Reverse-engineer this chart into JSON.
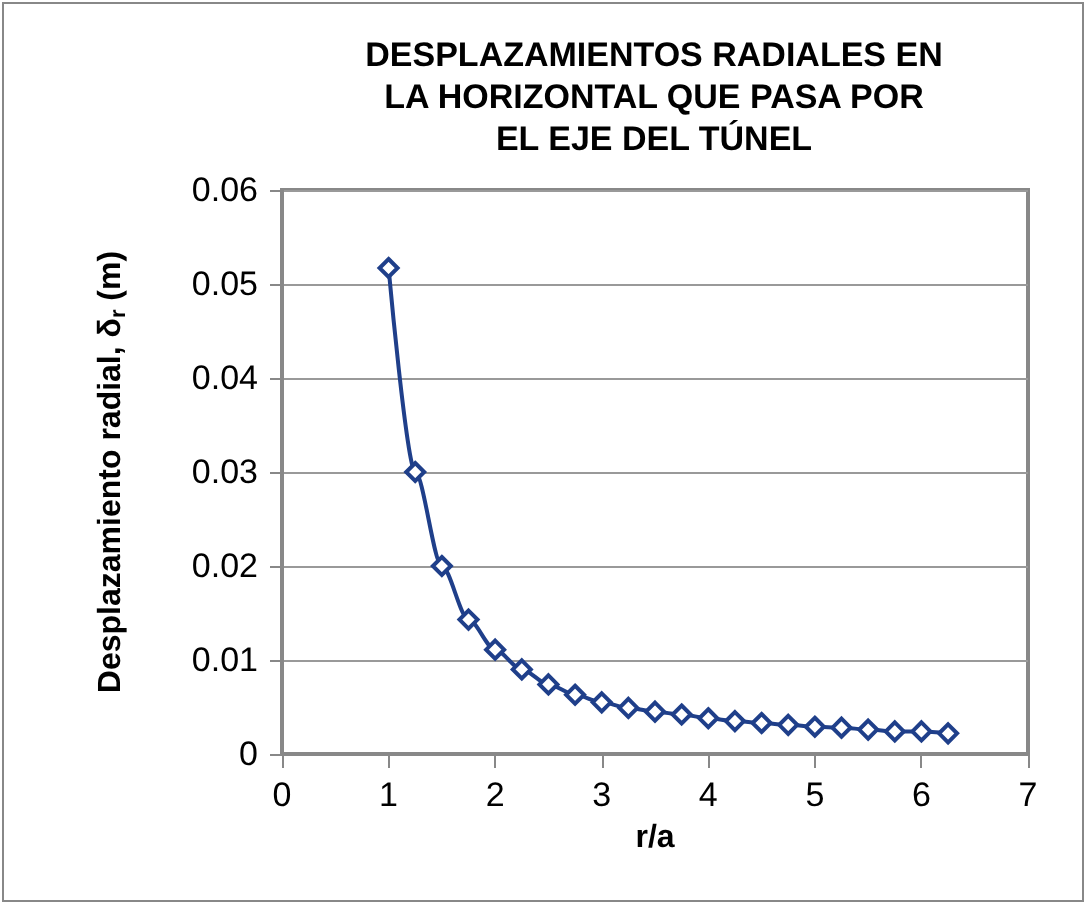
{
  "chart_data": {
    "type": "line",
    "title": "DESPLAZAMIENTOS RADIALES EN\nLA HORIZONTAL QUE PASA POR\nEL EJE DEL TÚNEL",
    "xlabel": "r/a",
    "ylabel": "Desplazamiento radial, δ$_{r}$ (m)",
    "x": [
      1,
      1.25,
      1.5,
      1.75,
      2,
      2.25,
      2.5,
      2.75,
      3,
      3.25,
      3.5,
      3.75,
      4,
      4.25,
      4.5,
      4.75,
      5,
      5.25,
      5.5,
      5.75,
      6,
      6.25
    ],
    "series": [
      {
        "color": "#1f3f8a",
        "values": [
          0.0517,
          0.03,
          0.02,
          0.0143,
          0.0111,
          0.009,
          0.0074,
          0.0063,
          0.0055,
          0.0049,
          0.0045,
          0.0042,
          0.0038,
          0.0035,
          0.0033,
          0.0031,
          0.0029,
          0.0028,
          0.0026,
          0.0024,
          0.0024,
          0.0022
        ]
      }
    ],
    "xlim": [
      0,
      7
    ],
    "xticks": [
      0,
      1,
      2,
      3,
      4,
      5,
      6,
      7
    ],
    "ylim": [
      0,
      0.06
    ],
    "yticks": [
      0,
      0.01,
      0.02,
      0.03,
      0.04,
      0.05,
      0.06
    ],
    "grid": "y",
    "marker": "diamond",
    "line_style": "solid"
  }
}
